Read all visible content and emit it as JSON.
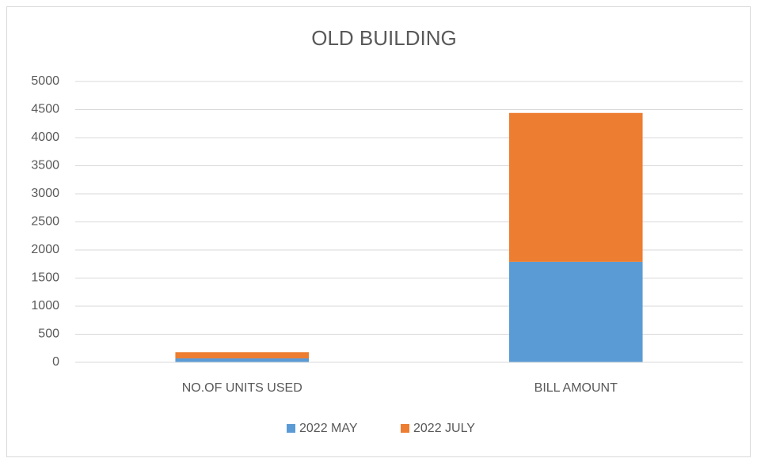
{
  "chart_data": {
    "type": "bar",
    "stacked": true,
    "title": "OLD BUILDING",
    "categories": [
      "NO.OF UNITS USED",
      "BILL AMOUNT"
    ],
    "series": [
      {
        "name": "2022 MAY",
        "color": "#5b9bd5",
        "values": [
          70,
          1790
        ]
      },
      {
        "name": "2022 JULY",
        "color": "#ed7d31",
        "values": [
          110,
          2650
        ]
      }
    ],
    "ylim": [
      0,
      5000
    ],
    "yticks": [
      0,
      500,
      1000,
      1500,
      2000,
      2500,
      3000,
      3500,
      4000,
      4500,
      5000
    ],
    "grid": true,
    "legend": "bottom"
  }
}
